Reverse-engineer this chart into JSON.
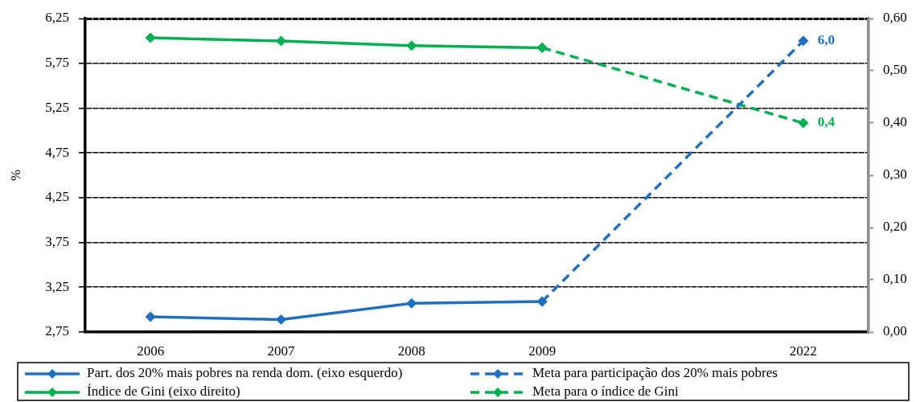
{
  "chart_data": {
    "type": "line",
    "categories": [
      "2006",
      "2007",
      "2008",
      "2009",
      null,
      "2022"
    ],
    "ylabel": "%",
    "ylim": [
      2.75,
      6.25
    ],
    "yticks": [
      {
        "value": 2.75,
        "label": "2,75"
      },
      {
        "value": 3.25,
        "label": "3,25"
      },
      {
        "value": 3.75,
        "label": "3,75"
      },
      {
        "value": 4.25,
        "label": "4,25"
      },
      {
        "value": 4.75,
        "label": "4,75"
      },
      {
        "value": 5.25,
        "label": "5,25"
      },
      {
        "value": 5.75,
        "label": "5,75"
      },
      {
        "value": 6.25,
        "label": "6,25"
      }
    ],
    "y2lim": [
      0,
      0.6
    ],
    "y2ticks": [
      {
        "value": 0,
        "label": "0,00"
      },
      {
        "value": 0.1,
        "label": "0,10"
      },
      {
        "value": 0.2,
        "label": "0,20"
      },
      {
        "value": 0.3,
        "label": "0,30"
      },
      {
        "value": 0.4,
        "label": "0,40"
      },
      {
        "value": 0.5,
        "label": "0,50"
      },
      {
        "value": 0.6,
        "label": "0,60"
      }
    ],
    "grid": "y",
    "legend": "bottom",
    "marker": "diamond",
    "series": [
      {
        "name": "Part. dos 20% mais pobres na renda dom. (eixo esquerdo)",
        "color": "#1f70c1",
        "line_style": "solid",
        "values": [
          2.92,
          2.89,
          3.07,
          3.09,
          null,
          null
        ]
      },
      {
        "name": "Meta para participação dos 20% mais pobres",
        "color": "#1f70c1",
        "line_style": "dashed",
        "values": [
          null,
          null,
          null,
          3.09,
          null,
          6.0
        ],
        "value_labels": [
          null,
          null,
          null,
          null,
          null,
          "6,0"
        ]
      },
      {
        "name": "Índice de Gini (eixo direito)",
        "color": "#00b050",
        "axis": "y2",
        "line_style": "solid",
        "values": [
          0.563,
          0.557,
          0.548,
          0.544,
          null,
          null
        ]
      },
      {
        "name": "Meta para o índice de Gini",
        "color": "#00b050",
        "axis": "y2",
        "line_style": "dashed",
        "values": [
          null,
          null,
          null,
          0.544,
          null,
          0.4
        ],
        "value_labels": [
          null,
          null,
          null,
          null,
          null,
          "0,4"
        ]
      }
    ]
  }
}
